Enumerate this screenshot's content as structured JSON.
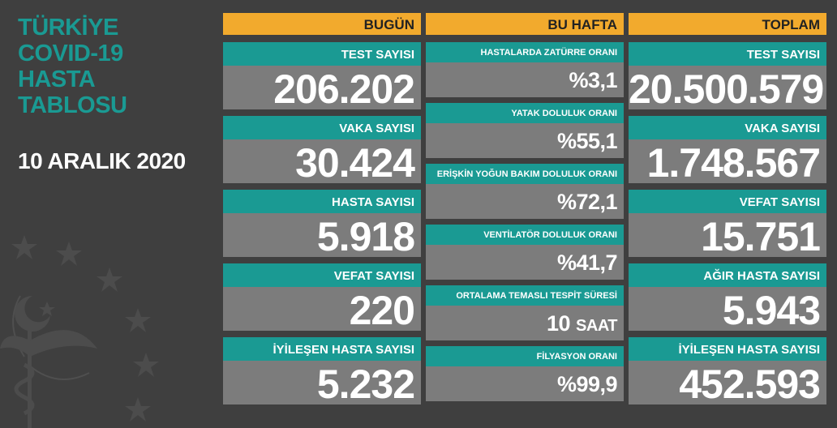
{
  "title_lines": [
    "TÜRKİYE",
    "COVID-19",
    "HASTA",
    "TABLOSU"
  ],
  "date": "10 ARALIK 2020",
  "colors": {
    "background": "#3f3f3f",
    "teal": "#1a9a93",
    "orange": "#f2aa2d",
    "card": "#7c7c7c"
  },
  "today": {
    "header": "BUGÜN",
    "items": [
      {
        "label": "TEST SAYISI",
        "value": "206.202"
      },
      {
        "label": "VAKA SAYISI",
        "value": "30.424"
      },
      {
        "label": "HASTA SAYISI",
        "value": "5.918"
      },
      {
        "label": "VEFAT SAYISI",
        "value": "220"
      },
      {
        "label": "İYİLEŞEN HASTA SAYISI",
        "value": "5.232"
      }
    ]
  },
  "week": {
    "header": "BU HAFTA",
    "items": [
      {
        "label": "HASTALARDA ZATÜRRE ORANI",
        "value": "%3,1"
      },
      {
        "label": "YATAK DOLULUK ORANI",
        "value": "%55,1"
      },
      {
        "label": "ERİŞKİN YOĞUN BAKIM DOLULUK ORANI",
        "value": "%72,1"
      },
      {
        "label": "VENTİLATÖR DOLULUK ORANI",
        "value": "%41,7"
      },
      {
        "label": "ORTALAMA TEMASLI TESPİT SÜRESİ",
        "value": "10",
        "unit": "SAAT"
      },
      {
        "label": "FİLYASYON ORANI",
        "value": "%99,9"
      }
    ]
  },
  "total": {
    "header": "TOPLAM",
    "items": [
      {
        "label": "TEST SAYISI",
        "value": "20.500.579"
      },
      {
        "label": "VAKA SAYISI",
        "value": "1.748.567"
      },
      {
        "label": "VEFAT SAYISI",
        "value": "15.751"
      },
      {
        "label": "AĞIR HASTA SAYISI",
        "value": "5.943"
      },
      {
        "label": "İYİLEŞEN HASTA SAYISI",
        "value": "452.593"
      }
    ]
  }
}
